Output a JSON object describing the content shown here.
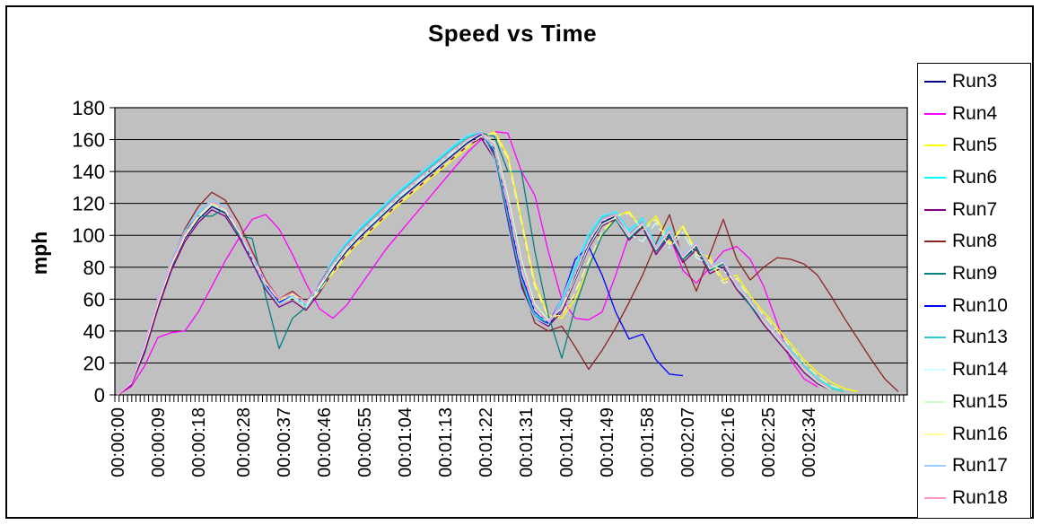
{
  "title": "Speed vs Time",
  "plot": {
    "plot_bg": "#C0C0C0",
    "grid_color": "#000000",
    "axis_color": "#000000",
    "frame_bg": "#FFFFFF"
  },
  "y_axis": {
    "label": "mph",
    "min": 0,
    "max": 180,
    "step": 20,
    "ticks": [
      "0",
      "20",
      "40",
      "60",
      "80",
      "100",
      "120",
      "140",
      "160",
      "180"
    ]
  },
  "x_axis": {
    "labels": [
      {
        "text": "00:00:00",
        "s": 0
      },
      {
        "text": "00:00:09",
        "s": 9
      },
      {
        "text": "00:00:18",
        "s": 18
      },
      {
        "text": "00:00:28",
        "s": 28
      },
      {
        "text": "00:00:37",
        "s": 37
      },
      {
        "text": "00:00:46",
        "s": 46
      },
      {
        "text": "00:00:55",
        "s": 55
      },
      {
        "text": "00:01:04",
        "s": 64
      },
      {
        "text": "00:01:13",
        "s": 73
      },
      {
        "text": "00:01:22",
        "s": 82
      },
      {
        "text": "00:01:31",
        "s": 91
      },
      {
        "text": "00:01:40",
        "s": 100
      },
      {
        "text": "00:01:49",
        "s": 109
      },
      {
        "text": "00:01:58",
        "s": 118
      },
      {
        "text": "00:02:07",
        "s": 127
      },
      {
        "text": "00:02:16",
        "s": 136
      },
      {
        "text": "00:02:25",
        "s": 145
      },
      {
        "text": "00:02:34",
        "s": 154
      }
    ]
  },
  "chart_data": {
    "type": "line",
    "title": "Speed vs Time",
    "ylabel": "mph",
    "ylim": [
      0,
      180
    ],
    "grid": "horizontal",
    "legend_position": "right",
    "x_seconds": [
      0,
      3,
      6,
      9,
      12,
      15,
      18,
      21,
      24,
      27,
      30,
      33,
      36,
      39,
      42,
      45,
      48,
      51,
      54,
      57,
      60,
      63,
      66,
      69,
      72,
      75,
      78,
      81,
      84,
      87,
      90,
      93,
      96,
      99,
      102,
      105,
      108,
      111,
      114,
      117,
      120,
      123,
      126,
      129,
      132,
      135,
      138,
      141,
      144,
      147,
      150,
      153,
      156,
      159,
      162,
      165,
      168,
      171,
      174
    ],
    "series": [
      {
        "name": "Run3",
        "color": "#000080",
        "values": [
          0,
          7,
          28,
          56,
          80,
          98,
          110,
          118,
          114,
          101,
          85,
          68,
          57,
          61,
          55,
          66,
          79,
          90,
          99,
          107,
          115,
          123,
          130,
          137,
          144,
          151,
          158,
          163,
          152,
          112,
          72,
          50,
          44,
          54,
          74,
          94,
          108,
          112,
          99,
          107,
          90,
          101,
          85,
          93,
          78,
          82,
          68,
          58,
          46,
          36,
          26,
          16,
          9,
          4,
          null,
          null,
          null,
          null,
          null
        ]
      },
      {
        "name": "Run4",
        "color": "#FF00FF",
        "values": [
          0,
          5,
          18,
          36,
          39,
          40,
          52,
          68,
          84,
          98,
          110,
          113,
          104,
          88,
          70,
          54,
          48,
          56,
          68,
          80,
          92,
          102,
          112,
          122,
          132,
          142,
          152,
          160,
          165,
          164,
          140,
          125,
          90,
          60,
          48,
          47,
          52,
          75,
          100,
          108,
          88,
          100,
          78,
          70,
          80,
          90,
          93,
          85,
          68,
          45,
          22,
          10,
          5,
          null,
          null,
          null,
          null,
          null,
          null
        ]
      },
      {
        "name": "Run5",
        "color": "#FFFF00",
        "values": [
          0,
          8,
          30,
          57,
          81,
          99,
          112,
          121,
          117,
          104,
          88,
          71,
          60,
          64,
          58,
          64,
          76,
          87,
          96,
          104,
          112,
          120,
          127,
          134,
          141,
          148,
          155,
          161,
          165,
          150,
          110,
          70,
          50,
          48,
          60,
          80,
          100,
          112,
          115,
          104,
          112,
          95,
          106,
          90,
          86,
          72,
          75,
          62,
          52,
          42,
          32,
          22,
          14,
          8,
          4,
          2,
          null,
          null,
          null
        ]
      },
      {
        "name": "Run6",
        "color": "#00FFFF",
        "values": [
          0,
          9,
          32,
          60,
          84,
          102,
          114,
          122,
          118,
          104,
          87,
          69,
          58,
          62,
          56,
          70,
          84,
          95,
          104,
          112,
          120,
          128,
          135,
          142,
          149,
          156,
          162,
          165,
          150,
          108,
          70,
          50,
          45,
          58,
          80,
          100,
          112,
          115,
          103,
          111,
          94,
          105,
          88,
          96,
          81,
          84,
          70,
          60,
          48,
          38,
          28,
          18,
          10,
          5,
          2,
          null,
          null,
          null,
          null
        ]
      },
      {
        "name": "Run7",
        "color": "#800080",
        "values": [
          0,
          6,
          26,
          54,
          78,
          96,
          108,
          116,
          112,
          99,
          83,
          66,
          55,
          59,
          53,
          64,
          77,
          88,
          97,
          105,
          113,
          121,
          128,
          135,
          142,
          149,
          156,
          161,
          148,
          108,
          68,
          48,
          43,
          52,
          72,
          92,
          106,
          110,
          97,
          105,
          88,
          99,
          83,
          91,
          76,
          80,
          66,
          56,
          44,
          34,
          24,
          14,
          7,
          3,
          null,
          null,
          null,
          null,
          null
        ]
      },
      {
        "name": "Run8",
        "color": "#8B2323",
        "values": [
          0,
          8,
          30,
          58,
          84,
          104,
          118,
          127,
          122,
          108,
          90,
          72,
          60,
          65,
          58,
          70,
          83,
          94,
          103,
          111,
          119,
          127,
          134,
          141,
          148,
          155,
          161,
          164,
          150,
          110,
          70,
          45,
          40,
          43,
          30,
          16,
          28,
          42,
          58,
          75,
          95,
          113,
          85,
          65,
          88,
          110,
          85,
          72,
          80,
          86,
          85,
          82,
          75,
          62,
          48,
          35,
          22,
          10,
          2
        ]
      },
      {
        "name": "Run9",
        "color": "#008080",
        "values": [
          0,
          8,
          30,
          58,
          82,
          103,
          112,
          112,
          117,
          100,
          98,
          62,
          29,
          48,
          55,
          66,
          80,
          91,
          100,
          108,
          116,
          124,
          131,
          138,
          145,
          152,
          159,
          164,
          162,
          140,
          140,
          90,
          50,
          23,
          55,
          80,
          100,
          110,
          98,
          106,
          90,
          100,
          85,
          92,
          78,
          82,
          68,
          56,
          46,
          36,
          26,
          16,
          8,
          3,
          null,
          null,
          null,
          null,
          null
        ]
      },
      {
        "name": "Run10",
        "color": "#0000FF",
        "values": [
          0,
          8,
          29,
          57,
          81,
          99,
          111,
          119,
          115,
          102,
          86,
          69,
          58,
          62,
          56,
          67,
          80,
          91,
          100,
          108,
          116,
          124,
          131,
          138,
          145,
          152,
          159,
          163,
          154,
          115,
          75,
          52,
          45,
          60,
          85,
          93,
          75,
          52,
          35,
          38,
          22,
          13,
          12,
          null,
          null,
          null,
          null,
          null,
          null,
          null,
          null,
          null,
          null,
          null,
          null,
          null,
          null,
          null,
          null
        ]
      },
      {
        "name": "Run13",
        "color": "#33CCCC",
        "values": [
          0,
          9,
          31,
          59,
          83,
          101,
          113,
          121,
          117,
          103,
          86,
          68,
          57,
          62,
          56,
          69,
          83,
          94,
          103,
          111,
          119,
          127,
          134,
          141,
          148,
          155,
          161,
          165,
          153,
          112,
          72,
          50,
          46,
          57,
          78,
          98,
          111,
          114,
          101,
          109,
          93,
          104,
          87,
          95,
          80,
          84,
          69,
          59,
          47,
          37,
          27,
          17,
          9,
          4,
          2,
          null,
          null,
          null,
          null
        ]
      },
      {
        "name": "Run14",
        "color": "#CCFFFF",
        "dash": "12 4 3 4",
        "values": [
          0,
          8,
          30,
          58,
          82,
          100,
          112,
          120,
          116,
          102,
          85,
          68,
          57,
          61,
          56,
          68,
          81,
          92,
          101,
          109,
          117,
          125,
          132,
          139,
          146,
          153,
          160,
          164,
          155,
          118,
          78,
          53,
          45,
          55,
          76,
          96,
          109,
          113,
          101,
          96,
          108,
          92,
          102,
          86,
          82,
          78,
          70,
          58,
          47,
          37,
          27,
          17,
          9,
          4,
          null,
          null,
          null,
          null,
          null
        ]
      },
      {
        "name": "Run15",
        "color": "#CCFFCC",
        "values": [
          0,
          7,
          29,
          57,
          81,
          99,
          111,
          119,
          115,
          102,
          86,
          68,
          57,
          61,
          55,
          67,
          80,
          91,
          100,
          108,
          116,
          124,
          131,
          138,
          145,
          152,
          159,
          164,
          158,
          125,
          85,
          57,
          47,
          54,
          73,
          93,
          107,
          111,
          99,
          107,
          91,
          102,
          86,
          94,
          79,
          83,
          68,
          58,
          46,
          36,
          26,
          16,
          8,
          3,
          null,
          null,
          null,
          null,
          null
        ]
      },
      {
        "name": "Run16",
        "color": "#FFFF99",
        "dash": "10 5",
        "values": [
          0,
          8,
          30,
          57,
          81,
          99,
          112,
          120,
          116,
          103,
          87,
          70,
          59,
          63,
          57,
          65,
          77,
          88,
          97,
          105,
          113,
          121,
          128,
          135,
          142,
          149,
          156,
          162,
          164,
          148,
          108,
          68,
          49,
          50,
          64,
          84,
          102,
          112,
          114,
          103,
          110,
          94,
          105,
          88,
          84,
          70,
          73,
          60,
          50,
          40,
          30,
          20,
          12,
          6,
          3,
          null,
          null,
          null,
          null
        ]
      },
      {
        "name": "Run17",
        "color": "#99CCFF",
        "values": [
          0,
          9,
          32,
          61,
          85,
          103,
          115,
          122,
          118,
          104,
          86,
          68,
          57,
          62,
          57,
          71,
          85,
          96,
          105,
          113,
          121,
          129,
          136,
          143,
          150,
          157,
          163,
          165,
          148,
          105,
          65,
          48,
          44,
          60,
          82,
          102,
          113,
          114,
          102,
          110,
          93,
          104,
          88,
          96,
          81,
          85,
          70,
          60,
          48,
          38,
          27,
          17,
          9,
          4,
          null,
          null,
          null,
          null,
          null
        ]
      },
      {
        "name": "Run18",
        "color": "#FF99CC",
        "values": [
          0,
          8,
          31,
          59,
          83,
          101,
          113,
          121,
          117,
          104,
          88,
          71,
          60,
          64,
          58,
          69,
          82,
          93,
          102,
          110,
          118,
          126,
          133,
          140,
          147,
          154,
          160,
          164,
          156,
          120,
          80,
          54,
          46,
          56,
          77,
          97,
          110,
          113,
          100,
          108,
          92,
          103,
          87,
          95,
          80,
          84,
          69,
          59,
          47,
          37,
          27,
          17,
          9,
          4,
          null,
          null,
          null,
          null,
          null
        ]
      }
    ]
  }
}
